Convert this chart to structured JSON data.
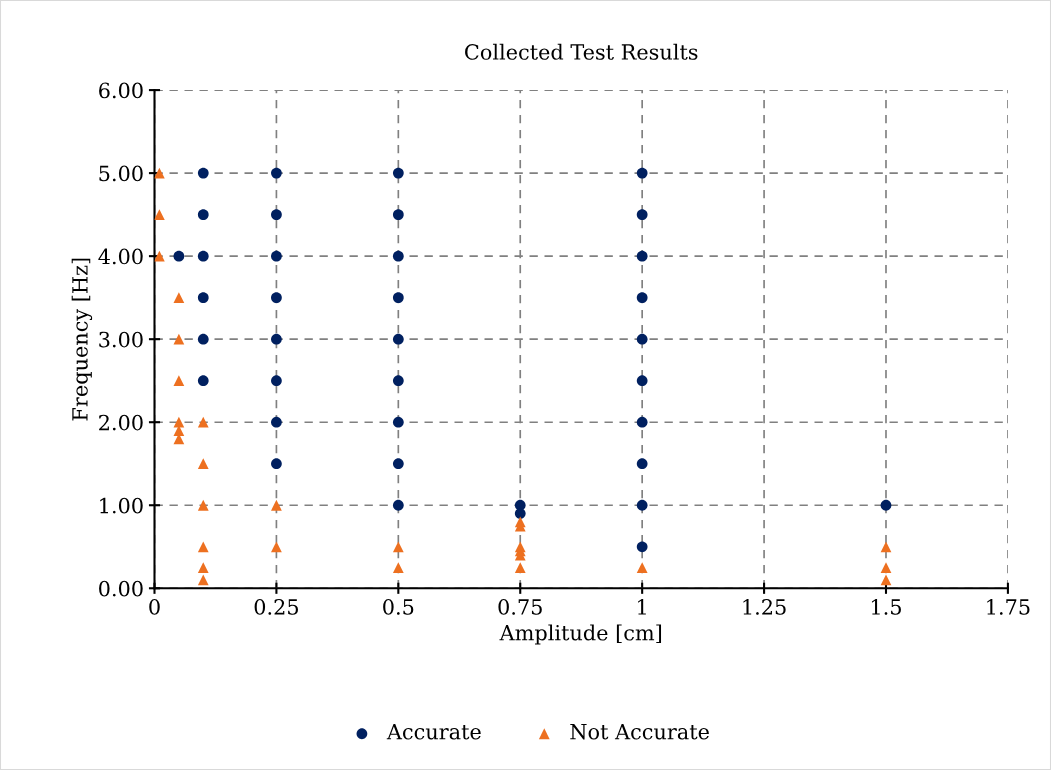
{
  "chart_data": {
    "type": "scatter",
    "title": "Collected Test Results",
    "xlabel": "Amplitude [cm]",
    "ylabel": "Frequency [Hz]",
    "series": [
      {
        "name": "Accurate",
        "color": "#002060",
        "marker": "circle",
        "x": [
          0.05,
          0.1,
          0.1,
          0.1,
          0.1,
          0.1,
          0.1,
          0.25,
          0.25,
          0.25,
          0.25,
          0.25,
          0.25,
          0.25,
          0.25,
          0.5,
          0.5,
          0.5,
          0.5,
          0.5,
          0.5,
          0.5,
          0.5,
          0.5,
          0.75,
          0.75,
          1,
          1,
          1,
          1,
          1,
          1,
          1,
          1,
          1,
          1,
          1.5
        ],
        "values": [
          4,
          2.5,
          3,
          3.5,
          4,
          4.5,
          5,
          1.5,
          2,
          2.5,
          3,
          3.5,
          4,
          4.5,
          5,
          1,
          1.5,
          2,
          2.5,
          3,
          3.5,
          4,
          4.5,
          5,
          1,
          0.9,
          0.5,
          1,
          1.5,
          2,
          2.5,
          3,
          3.5,
          4,
          4.5,
          5,
          1
        ]
      },
      {
        "name": "Not Accurate",
        "color": "#ED7020",
        "marker": "triangle",
        "x": [
          0.01,
          0.01,
          0.01,
          0.05,
          0.05,
          0.05,
          0.05,
          0.05,
          0.05,
          0.1,
          0.1,
          0.1,
          0.1,
          0.1,
          0.1,
          0.25,
          0.25,
          0.5,
          0.5,
          0.75,
          0.75,
          0.75,
          0.75,
          0.75,
          0.75,
          1,
          1.5,
          1.5,
          1.5
        ],
        "values": [
          5,
          4.5,
          4,
          3.5,
          3,
          2.5,
          2,
          1.9,
          1.8,
          2,
          1.5,
          1,
          0.5,
          0.25,
          0.1,
          1,
          0.5,
          0.5,
          0.25,
          0.8,
          0.75,
          0.5,
          0.45,
          0.4,
          0.25,
          0.25,
          0.5,
          0.25,
          0.1
        ]
      }
    ],
    "xlim": [
      0,
      1.75
    ],
    "xticks": [
      0,
      0.25,
      0.5,
      0.75,
      1,
      1.25,
      1.5,
      1.75
    ],
    "ylim": [
      0,
      6
    ],
    "yticks": [
      {
        "value": 0,
        "label": "0.00"
      },
      {
        "value": 1,
        "label": "1.00"
      },
      {
        "value": 2,
        "label": "2.00"
      },
      {
        "value": 3,
        "label": "3.00"
      },
      {
        "value": 4,
        "label": "4.00"
      },
      {
        "value": 5,
        "label": "5.00"
      },
      {
        "value": 6,
        "label": "6.00"
      }
    ],
    "grid": true,
    "line_style": "dashed",
    "legend": "bottom"
  }
}
